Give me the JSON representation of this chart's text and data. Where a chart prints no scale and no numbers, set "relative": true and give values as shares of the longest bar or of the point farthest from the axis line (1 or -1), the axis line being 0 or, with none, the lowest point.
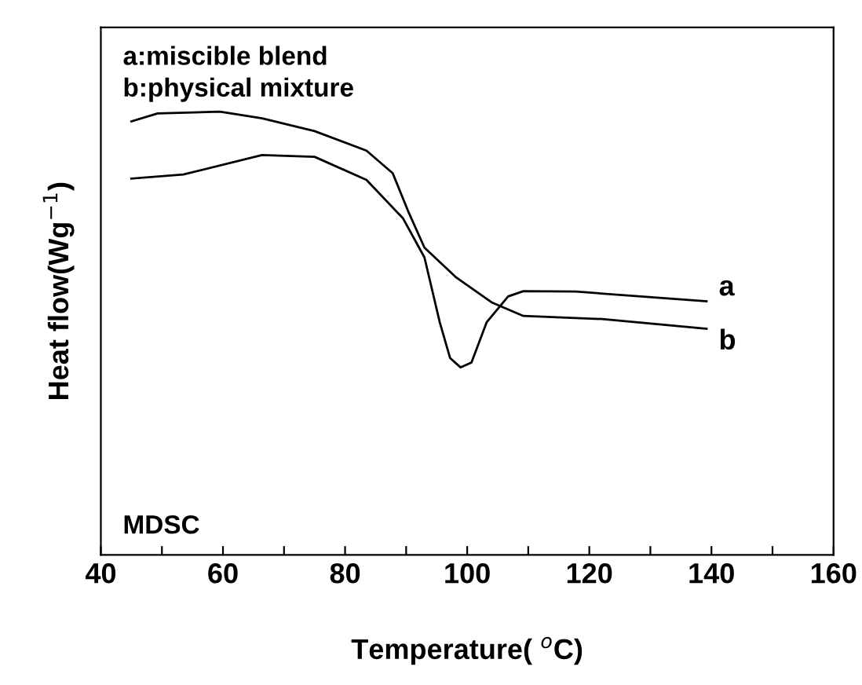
{
  "chart_data": {
    "type": "line",
    "relative": true,
    "xlabel": "Temperature( $^{o}$C)",
    "ylabel": "Heat flow(Wg$^{−1}$)",
    "annotations": [
      "a:miscible blend",
      "b:physical mixture",
      "MDSC"
    ],
    "xlim": [
      40,
      160
    ],
    "xticks": [
      40,
      {
        "value": 50,
        "label": null
      },
      60,
      {
        "value": 70,
        "label": null
      },
      80,
      {
        "value": 90,
        "label": null
      },
      100,
      {
        "value": 110,
        "label": null
      },
      120,
      {
        "value": 130,
        "label": null
      },
      140,
      {
        "value": 150,
        "label": null
      },
      160
    ],
    "grid": false,
    "legend": false,
    "marker": "none",
    "line_style": "solid",
    "series": [
      {
        "name": "a",
        "color": "#000000",
        "x": [
          45,
          53.5,
          66.4,
          75,
          83.5,
          89.5,
          93,
          95.5,
          97.2,
          98.9,
          100.7,
          103.2,
          106.7,
          109.2,
          117.8,
          139.2
        ],
        "values": [
          0.849,
          0.858,
          0.902,
          0.898,
          0.846,
          0.759,
          0.671,
          0.525,
          0.444,
          0.423,
          0.434,
          0.525,
          0.583,
          0.595,
          0.594,
          0.572
        ]
      },
      {
        "name": "b",
        "color": "#000000",
        "x": [
          45,
          49.3,
          59.5,
          66.4,
          75,
          83.5,
          87.8,
          90.4,
          93,
          98.1,
          104.1,
          109.2,
          122.1,
          139.2
        ],
        "values": [
          0.978,
          0.996,
          1.0,
          0.985,
          0.956,
          0.912,
          0.861,
          0.773,
          0.693,
          0.627,
          0.569,
          0.539,
          0.532,
          0.51
        ]
      }
    ]
  }
}
